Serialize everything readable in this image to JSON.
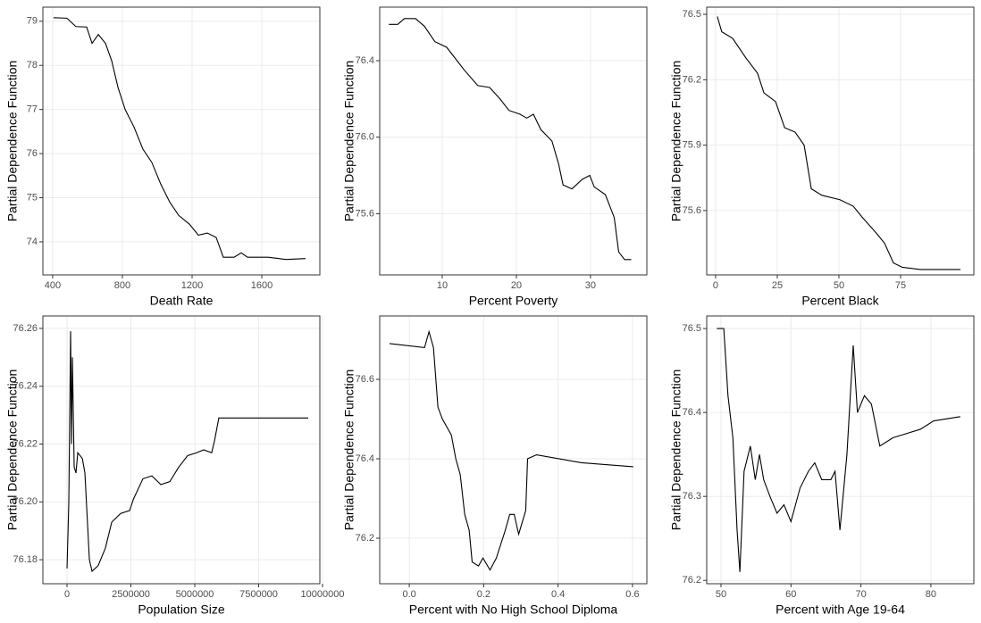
{
  "chart_data": [
    {
      "type": "line",
      "xlabel": "Death Rate",
      "ylabel": "Partial Dependence Function",
      "color": "#000000",
      "grid": true,
      "x": [
        405,
        482,
        533,
        595,
        626,
        662,
        703,
        739,
        775,
        816,
        867,
        918,
        969,
        1021,
        1072,
        1123,
        1185,
        1236,
        1287,
        1338,
        1379,
        1441,
        1482,
        1518,
        1636,
        1738,
        1851
      ],
      "values": [
        79.08,
        79.07,
        78.88,
        78.87,
        78.5,
        78.7,
        78.5,
        78.1,
        77.5,
        77.0,
        76.6,
        76.1,
        75.8,
        75.3,
        74.9,
        74.6,
        74.4,
        74.15,
        74.2,
        74.1,
        73.65,
        73.65,
        73.75,
        73.65,
        73.65,
        73.6,
        73.62
      ],
      "xlim": [
        344,
        1933
      ],
      "ylim": [
        73.25,
        79.32
      ],
      "xticks": [
        400,
        800,
        1200,
        1600
      ],
      "yticks": [
        74,
        75,
        76,
        77,
        78,
        79
      ]
    },
    {
      "type": "line",
      "xlabel": "Percent Poverty",
      "ylabel": "Partial Dependence Function",
      "color": "#000000",
      "grid": true,
      "x": [
        2.8,
        4.0,
        4.9,
        6.4,
        7.6,
        9.0,
        10.6,
        12.0,
        13.0,
        14.8,
        16.4,
        17.8,
        19.0,
        20.5,
        21.4,
        22.3,
        23.3,
        24.8,
        25.7,
        26.3,
        27.5,
        28.9,
        29.9,
        30.5,
        32.0,
        33.2,
        33.8,
        34.6,
        35.5
      ],
      "values": [
        76.59,
        76.59,
        76.62,
        76.62,
        76.58,
        76.5,
        76.47,
        76.4,
        76.35,
        76.27,
        76.26,
        76.2,
        76.14,
        76.12,
        76.1,
        76.12,
        76.04,
        75.98,
        75.86,
        75.75,
        75.73,
        75.78,
        75.8,
        75.74,
        75.7,
        75.58,
        75.4,
        75.36,
        75.36
      ],
      "xlim": [
        1.57,
        37.6
      ],
      "ylim": [
        75.28,
        76.68
      ],
      "xticks": [
        10,
        20,
        30
      ],
      "yticks": [
        75.6,
        {
          "value": 76,
          "label": "76.0"
        },
        76.4
      ]
    },
    {
      "type": "line",
      "xlabel": "Percent Black",
      "ylabel": "Partial Dependence Function",
      "color": "#000000",
      "grid": true,
      "x": [
        0.7,
        2.5,
        6.9,
        12.3,
        17,
        19.6,
        24.3,
        28,
        32.2,
        35.9,
        38.8,
        43.1,
        50.4,
        55.8,
        59.4,
        64.9,
        68.5,
        72.1,
        75.7,
        83,
        99.3
      ],
      "values": [
        76.49,
        76.42,
        76.39,
        76.3,
        76.23,
        76.14,
        76.1,
        75.98,
        75.96,
        75.9,
        75.7,
        75.67,
        75.65,
        75.62,
        75.57,
        75.5,
        75.45,
        75.36,
        75.34,
        75.33,
        75.33
      ],
      "xlim": [
        -3.6,
        104.7
      ],
      "ylim": [
        75.305,
        76.533
      ],
      "xticks": [
        0,
        25,
        50,
        75
      ],
      "yticks": [
        75.6,
        75.9,
        76.2,
        76.5
      ]
    },
    {
      "type": "line",
      "xlabel": "Population Size",
      "ylabel": "Partial Dependence Function",
      "color": "#000000",
      "grid": true,
      "x": [
        0,
        70000,
        140000,
        175000,
        210000,
        280000,
        350000,
        420000,
        600000,
        700000,
        875000,
        980000,
        1220000,
        1500000,
        1750000,
        2100000,
        2450000,
        2600000,
        2970000,
        3320000,
        3670000,
        4020000,
        4370000,
        4720000,
        5070000,
        5350000,
        5660000,
        5770000,
        5940000,
        6470000,
        9440000
      ],
      "values": [
        76.177,
        76.2,
        76.259,
        76.22,
        76.25,
        76.212,
        76.21,
        76.217,
        76.215,
        76.21,
        76.18,
        76.176,
        76.178,
        76.184,
        76.193,
        76.196,
        76.197,
        76.201,
        76.208,
        76.209,
        76.206,
        76.207,
        76.212,
        76.216,
        76.217,
        76.218,
        76.217,
        76.221,
        76.229,
        76.229,
        76.229
      ],
      "xlim": [
        -945000,
        9895000
      ],
      "ylim": [
        76.1717,
        76.2643
      ],
      "xticks": [
        0,
        2500000,
        5000000,
        7500000,
        10000000
      ],
      "yticks": [
        76.18,
        {
          "value": 76.2,
          "label": "76.20"
        },
        76.22,
        76.24,
        76.26
      ]
    },
    {
      "type": "line",
      "xlabel": "Percent with No High School Diploma",
      "ylabel": "Partial Dependence Function",
      "color": "#000000",
      "grid": true,
      "x": [
        -0.053,
        0.041,
        0.053,
        0.065,
        0.077,
        0.089,
        0.113,
        0.125,
        0.137,
        0.149,
        0.161,
        0.169,
        0.186,
        0.198,
        0.217,
        0.234,
        0.258,
        0.27,
        0.282,
        0.294,
        0.313,
        0.318,
        0.342,
        0.463,
        0.602
      ],
      "values": [
        76.69,
        76.68,
        76.72,
        76.68,
        76.53,
        76.5,
        76.46,
        76.4,
        76.36,
        76.26,
        76.22,
        76.14,
        76.13,
        76.15,
        76.12,
        76.15,
        76.22,
        76.26,
        76.26,
        76.21,
        76.27,
        76.4,
        76.41,
        76.39,
        76.38
      ],
      "xlim": [
        -0.0795,
        0.6386
      ],
      "ylim": [
        76.0854,
        76.7596
      ],
      "xticks": [
        {
          "value": 0,
          "label": "0.0"
        },
        0.2,
        0.4,
        0.6
      ],
      "yticks": [
        76.2,
        76.4,
        76.6
      ]
    },
    {
      "type": "line",
      "xlabel": "Percent with Age 19-64",
      "ylabel": "Partial Dependence Function",
      "color": "#000000",
      "grid": true,
      "x": [
        49.4,
        50.4,
        51.0,
        51.7,
        52.3,
        52.7,
        53.3,
        54.2,
        54.9,
        55.5,
        56.1,
        57.0,
        58.0,
        59.0,
        60.0,
        61.3,
        62.5,
        63.4,
        64.4,
        65.7,
        66.3,
        67.0,
        68.0,
        68.9,
        69.5,
        70.5,
        71.5,
        72.7,
        74.6,
        78.5,
        80.4,
        84.2
      ],
      "values": [
        76.5,
        76.5,
        76.42,
        76.37,
        76.26,
        76.21,
        76.33,
        76.36,
        76.32,
        76.35,
        76.32,
        76.3,
        76.28,
        76.29,
        76.27,
        76.31,
        76.33,
        76.34,
        76.32,
        76.32,
        76.33,
        76.26,
        76.35,
        76.48,
        76.4,
        76.42,
        76.41,
        76.36,
        76.37,
        76.38,
        76.39,
        76.395
      ],
      "xlim": [
        47.96,
        86.14
      ],
      "ylim": [
        76.196,
        76.515
      ],
      "xticks": [
        50,
        60,
        70,
        80
      ],
      "yticks": [
        76.2,
        76.3,
        76.4,
        76.5
      ]
    }
  ]
}
